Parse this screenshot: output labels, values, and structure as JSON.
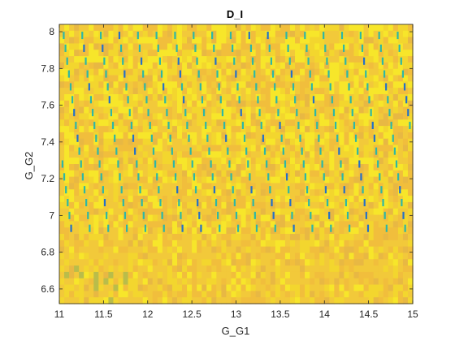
{
  "chart_data": {
    "type": "heatmap",
    "title": "D_I",
    "xlabel": "G_G1",
    "ylabel": "G_G2",
    "xlim": [
      11,
      15
    ],
    "ylim": [
      6.52,
      8.04
    ],
    "xticks": [
      "11",
      "11.5",
      "12",
      "12.5",
      "13",
      "13.5",
      "14",
      "14.5",
      "15"
    ],
    "yticks": [
      "6.6",
      "6.8",
      "7",
      "7.2",
      "7.4",
      "7.6",
      "7.8",
      "8"
    ],
    "grid": false,
    "colormap": "parula",
    "colors": {
      "background_high": "#f5dc2c",
      "background_low": "#f2c13a",
      "line_mid": "#2db7a6",
      "line_dark": "#2470c8",
      "axis": "#262626"
    },
    "ridge_lines": {
      "description_of_pattern": "diagonal dashed lines of low D_I values over a mostly high (yellow) background",
      "x_spacing": 0.21,
      "slope_dx_per_dy": -0.28,
      "y_range": [
        6.95,
        8.03
      ],
      "dash_length_y": 0.04,
      "dash_spacing_y": 0.07
    }
  }
}
